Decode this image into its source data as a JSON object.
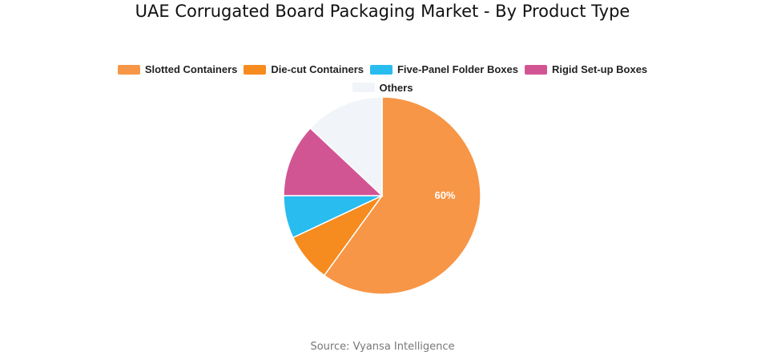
{
  "chart_data": {
    "type": "pie",
    "title": "UAE Corrugated Board Packaging Market - By Product Type",
    "legend_position": "top",
    "slices": [
      {
        "name": "Slotted Containers",
        "value": 60,
        "color": "#F79646",
        "label": "60%"
      },
      {
        "name": "Die-cut Containers",
        "value": 8,
        "color": "#F68B1F",
        "label": ""
      },
      {
        "name": "Five-Panel Folder Boxes",
        "value": 7,
        "color": "#29BCEF",
        "label": ""
      },
      {
        "name": "Rigid Set-up Boxes",
        "value": 12,
        "color": "#D25593",
        "label": ""
      },
      {
        "name": "Others",
        "value": 13,
        "color": "#F1F4F8",
        "label": ""
      }
    ]
  },
  "source": "Source: Vyansa Intelligence"
}
